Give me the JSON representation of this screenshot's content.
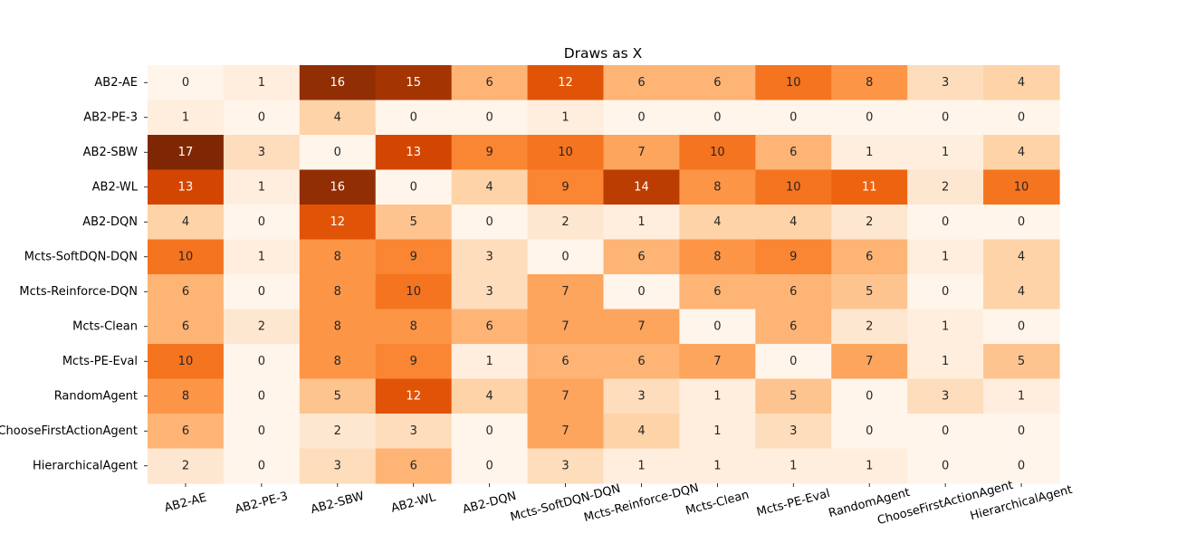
{
  "chart_data": {
    "type": "heatmap",
    "title": "Draws as X",
    "xlabel": "",
    "ylabel": "",
    "colormap": "Oranges",
    "vmin": 0,
    "vmax": 17,
    "colorbar": false,
    "x_tick_rotation_deg": 15,
    "rows": [
      "AB2-AE",
      "AB2-PE-3",
      "AB2-SBW",
      "AB2-WL",
      "AB2-DQN",
      "Mcts-SoftDQN-DQN",
      "Mcts-Reinforce-DQN",
      "Mcts-Clean",
      "Mcts-PE-Eval",
      "RandomAgent",
      "ChooseFirstActionAgent",
      "HierarchicalAgent"
    ],
    "columns": [
      "AB2-AE",
      "AB2-PE-3",
      "AB2-SBW",
      "AB2-WL",
      "AB2-DQN",
      "Mcts-SoftDQN-DQN",
      "Mcts-Reinforce-DQN",
      "Mcts-Clean",
      "Mcts-PE-Eval",
      "RandomAgent",
      "ChooseFirstActionAgent",
      "HierarchicalAgent"
    ],
    "values": [
      [
        0,
        1,
        16,
        15,
        6,
        12,
        6,
        6,
        10,
        8,
        3,
        4
      ],
      [
        1,
        0,
        4,
        0,
        0,
        1,
        0,
        0,
        0,
        0,
        0,
        0
      ],
      [
        17,
        3,
        0,
        13,
        9,
        10,
        7,
        10,
        6,
        1,
        1,
        4
      ],
      [
        13,
        1,
        16,
        0,
        4,
        9,
        14,
        8,
        10,
        11,
        2,
        10
      ],
      [
        4,
        0,
        12,
        5,
        0,
        2,
        1,
        4,
        4,
        2,
        0,
        0
      ],
      [
        10,
        1,
        8,
        9,
        3,
        0,
        6,
        8,
        9,
        6,
        1,
        4
      ],
      [
        6,
        0,
        8,
        10,
        3,
        7,
        0,
        6,
        6,
        5,
        0,
        4
      ],
      [
        6,
        2,
        8,
        8,
        6,
        7,
        7,
        0,
        6,
        2,
        1,
        0
      ],
      [
        10,
        0,
        8,
        9,
        1,
        6,
        6,
        7,
        0,
        7,
        1,
        5
      ],
      [
        8,
        0,
        5,
        12,
        4,
        7,
        3,
        1,
        5,
        0,
        3,
        1
      ],
      [
        6,
        0,
        2,
        3,
        0,
        7,
        4,
        1,
        3,
        0,
        0,
        0
      ],
      [
        2,
        0,
        3,
        6,
        0,
        3,
        1,
        1,
        1,
        1,
        0,
        0
      ]
    ]
  }
}
